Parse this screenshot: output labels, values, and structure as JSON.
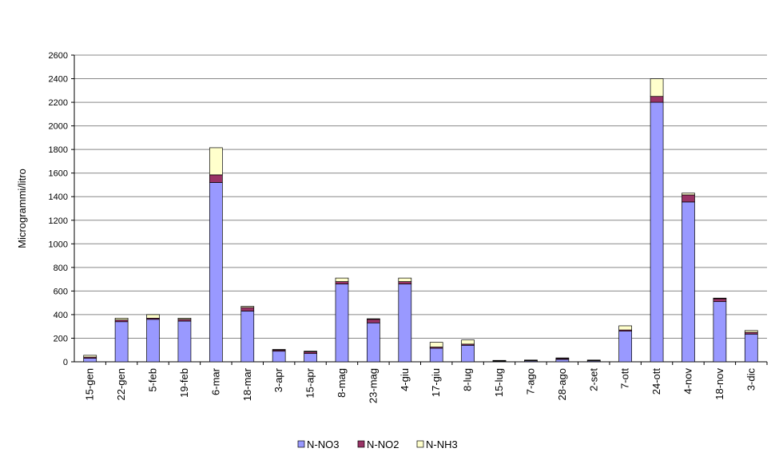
{
  "chart_data": {
    "type": "stacked_bar",
    "y_label": "Microgrammi/litro",
    "categories": [
      "15-gen",
      "22-gen",
      "5-feb",
      "19-feb",
      "6-mar",
      "18-mar",
      "3-apr",
      "15-apr",
      "8-mag",
      "23-mag",
      "4-giu",
      "17-giu",
      "8-lug",
      "15-lug",
      "7-ago",
      "28-ago",
      "2-set",
      "7-ott",
      "24-ott",
      "4-nov",
      "18-nov",
      "3-dic"
    ],
    "series": [
      {
        "name": "N-NO3",
        "color": "#9999ff",
        "values": [
          30,
          340,
          360,
          345,
          1520,
          430,
          90,
          70,
          660,
          330,
          660,
          115,
          140,
          5,
          8,
          20,
          8,
          260,
          2200,
          1355,
          510,
          235
        ]
      },
      {
        "name": "N-NO2",
        "color": "#993366",
        "values": [
          10,
          15,
          10,
          15,
          65,
          30,
          10,
          15,
          20,
          30,
          20,
          10,
          10,
          5,
          5,
          8,
          5,
          10,
          50,
          60,
          25,
          15
        ]
      },
      {
        "name": "N-NH3",
        "color": "#ffffcc",
        "values": [
          15,
          15,
          30,
          10,
          230,
          10,
          5,
          5,
          30,
          5,
          30,
          40,
          35,
          2,
          2,
          5,
          2,
          35,
          150,
          15,
          5,
          15
        ]
      }
    ],
    "ylim": [
      0,
      2600
    ],
    "yticks": [
      0,
      200,
      400,
      600,
      800,
      1000,
      1200,
      1400,
      1600,
      1800,
      2000,
      2200,
      2400,
      2600
    ],
    "grid": true,
    "legend": "bottom"
  }
}
